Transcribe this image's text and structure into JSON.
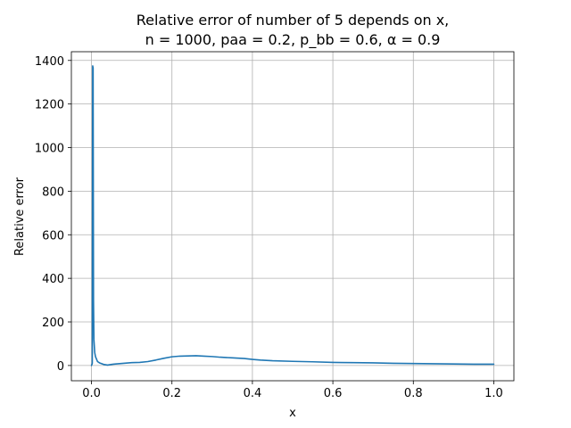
{
  "chart_data": {
    "type": "line",
    "title_line1": "Relative error of number of 5 depends on x,",
    "title_line2": "n = 1000, paa = 0.2, p_bb = 0.6, α = 0.9",
    "xlabel": "x",
    "ylabel": "Relative error",
    "xlim": [
      -0.05,
      1.05
    ],
    "ylim": [
      -70,
      1440
    ],
    "xticks": [
      0.0,
      0.2,
      0.4,
      0.6,
      0.8,
      1.0
    ],
    "xtick_labels": [
      "0.0",
      "0.2",
      "0.4",
      "0.6",
      "0.8",
      "1.0"
    ],
    "yticks": [
      0,
      200,
      400,
      600,
      800,
      1000,
      1200,
      1400
    ],
    "ytick_labels": [
      "0",
      "200",
      "400",
      "600",
      "800",
      "1000",
      "1200",
      "1400"
    ],
    "grid": true,
    "colors": {
      "series": "#1f77b4"
    },
    "series": [
      {
        "x": [
          0.0,
          0.002,
          0.003,
          0.004,
          0.005,
          0.006,
          0.007,
          0.008,
          0.01,
          0.015,
          0.02,
          0.03,
          0.04,
          0.05,
          0.06,
          0.08,
          0.1,
          0.12,
          0.14,
          0.16,
          0.18,
          0.2,
          0.22,
          0.24,
          0.26,
          0.28,
          0.3,
          0.32,
          0.35,
          0.38,
          0.4,
          0.42,
          0.45,
          0.5,
          0.55,
          0.6,
          0.65,
          0.7,
          0.75,
          0.8,
          0.85,
          0.9,
          0.95,
          1.0
        ],
        "y": [
          0,
          10,
          1375,
          1365,
          300,
          120,
          90,
          60,
          40,
          18,
          12,
          5,
          2,
          5,
          7,
          10,
          13,
          14,
          18,
          25,
          33,
          40,
          43,
          44,
          45,
          43,
          41,
          38,
          35,
          32,
          28,
          25,
          22,
          19,
          17,
          14,
          13,
          12,
          10,
          9,
          8,
          7,
          6,
          6
        ]
      }
    ]
  }
}
